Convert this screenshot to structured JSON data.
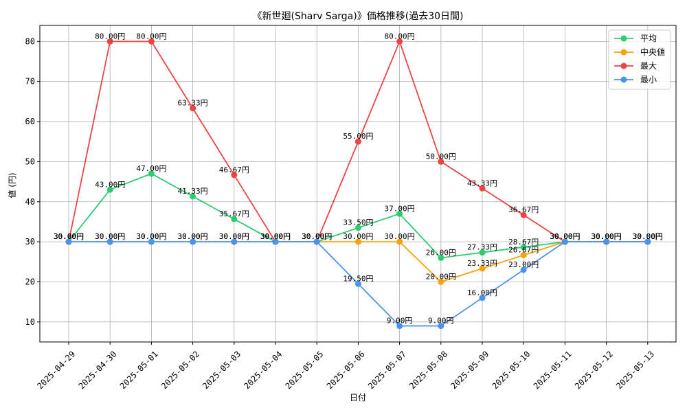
{
  "chart_data": {
    "type": "line",
    "title": "《新世廻(Sharv Sarga)》価格推移(過去30日間)",
    "xlabel": "日付",
    "ylabel": "値 (円)",
    "x": [
      "2025-04-29",
      "2025-04-30",
      "2025-05-01",
      "2025-05-02",
      "2025-05-03",
      "2025-05-04",
      "2025-05-05",
      "2025-05-06",
      "2025-05-07",
      "2025-05-08",
      "2025-05-09",
      "2025-05-10",
      "2025-05-11",
      "2025-05-12",
      "2025-05-13"
    ],
    "yticks": [
      10,
      20,
      30,
      40,
      50,
      60,
      70,
      80
    ],
    "ylim": [
      5,
      84
    ],
    "grid": true,
    "legend_position": "top-right",
    "series": [
      {
        "name": "平均",
        "color": "#2ecc71",
        "values": [
          30.0,
          43.0,
          47.0,
          41.33,
          35.67,
          30.0,
          30.0,
          33.5,
          37.0,
          26.0,
          27.33,
          28.67,
          30.0,
          30.0,
          30.0
        ],
        "labels": [
          "30.00円",
          "43.00円",
          "47.00円",
          "41.33円",
          "35.67円",
          "30.00円",
          "30.00円",
          "33.50円",
          "37.00円",
          "26.00円",
          "27.33円",
          "28.67円",
          "30.00円",
          "30.00円",
          "30.00円"
        ]
      },
      {
        "name": "中央値",
        "color": "#f5a30a",
        "values": [
          30.0,
          30.0,
          30.0,
          30.0,
          30.0,
          30.0,
          30.0,
          30.0,
          30.0,
          20.0,
          23.33,
          26.67,
          30.0,
          30.0,
          30.0
        ],
        "labels": [
          "30.00円",
          "30.00円",
          "30.00円",
          "30.00円",
          "30.00円",
          "30.00円",
          "30.00円",
          "30.00円",
          "30.00円",
          "20.00円",
          "23.33円",
          "26.67円",
          "30.00円",
          "30.00円",
          "30.00円"
        ]
      },
      {
        "name": "最大",
        "color": "#ef4444",
        "values": [
          30.0,
          80.0,
          80.0,
          63.33,
          46.67,
          30.0,
          30.0,
          55.0,
          80.0,
          50.0,
          43.33,
          36.67,
          30.0,
          30.0,
          30.0
        ],
        "labels": [
          "30.00円",
          "80.00円",
          "80.00円",
          "63.33円",
          "46.67円",
          "30.00円",
          "30.00円",
          "55.00円",
          "80.00円",
          "50.00円",
          "43.33円",
          "36.67円",
          "30.00円",
          "30.00円",
          "30.00円"
        ]
      },
      {
        "name": "最小",
        "color": "#4a94f0",
        "values": [
          30.0,
          30.0,
          30.0,
          30.0,
          30.0,
          30.0,
          30.0,
          19.5,
          9.0,
          9.0,
          16.0,
          23.0,
          30.0,
          30.0,
          30.0
        ],
        "labels": [
          "30.00円",
          "30.00円",
          "30.00円",
          "30.00円",
          "30.00円",
          "30.00円",
          "30.00円",
          "19.50円",
          "9.00円",
          "9.00円",
          "16.00円",
          "23.00円",
          "30.00円",
          "30.00円",
          "30.00円"
        ]
      }
    ]
  }
}
